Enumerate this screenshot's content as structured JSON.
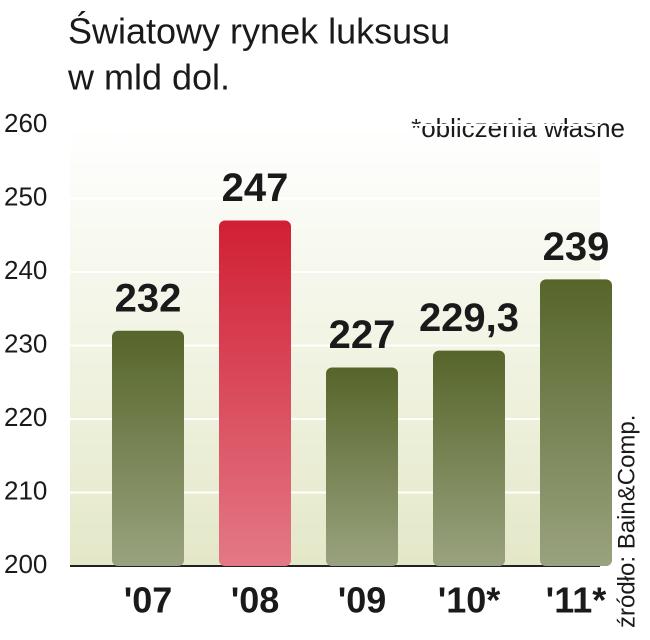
{
  "chart_data": {
    "type": "bar",
    "title": "Światowy rynek luksusu",
    "subtitle": "w mld dol.",
    "annotation": "*obliczenia własne",
    "source": "źródło: Bain&Comp.",
    "categories": [
      "'07",
      "'08",
      "'09",
      "'10*",
      "'11*"
    ],
    "values": [
      232,
      247,
      227,
      229.3,
      239
    ],
    "value_labels": [
      "232",
      "247",
      "227",
      "229,3",
      "239"
    ],
    "colors": [
      "#56652a",
      "#d11f34",
      "#56652a",
      "#56652a",
      "#56652a"
    ],
    "ylim": [
      200,
      260
    ],
    "yticks": [
      200,
      210,
      220,
      230,
      240,
      250,
      260
    ],
    "grid": true
  }
}
